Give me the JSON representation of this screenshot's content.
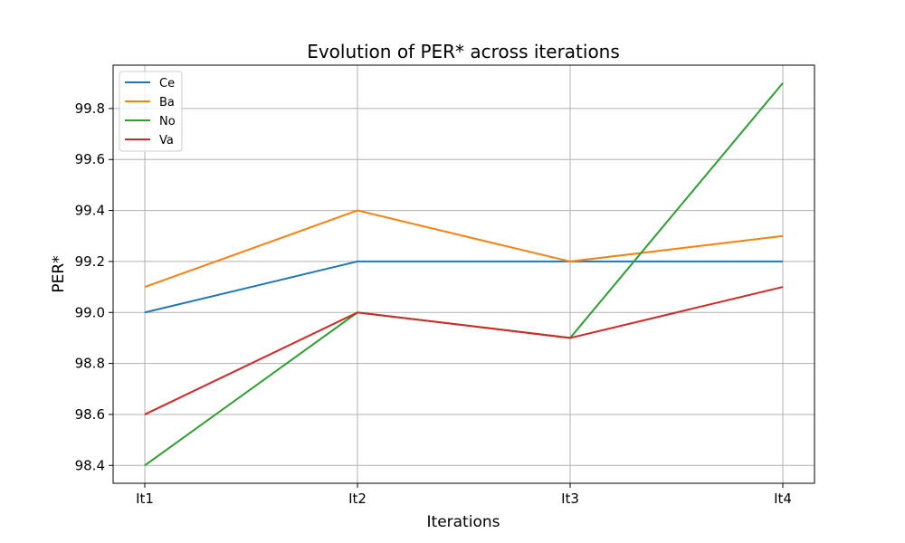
{
  "chart_data": {
    "type": "line",
    "title": "Evolution of PER* across iterations",
    "xlabel": "Iterations",
    "ylabel": "PER*",
    "categories": [
      "It1",
      "It2",
      "It3",
      "It4"
    ],
    "ylim": [
      98.33,
      99.97
    ],
    "yticks": [
      "98.4",
      "98.6",
      "98.8",
      "99.0",
      "99.2",
      "99.4",
      "99.6",
      "99.8"
    ],
    "grid": true,
    "legend_position": "top-left",
    "series": [
      {
        "name": "Ce",
        "color": "#1f77b4",
        "values": [
          99.0,
          99.2,
          99.2,
          99.2
        ]
      },
      {
        "name": "Ba",
        "color": "#ff7f0e",
        "values": [
          99.1,
          99.4,
          99.2,
          99.3
        ]
      },
      {
        "name": "No",
        "color": "#2ca02c",
        "values": [
          98.4,
          99.0,
          98.9,
          99.9
        ]
      },
      {
        "name": "Va",
        "color": "#d62728",
        "values": [
          98.6,
          99.0,
          98.9,
          99.1
        ]
      }
    ]
  }
}
